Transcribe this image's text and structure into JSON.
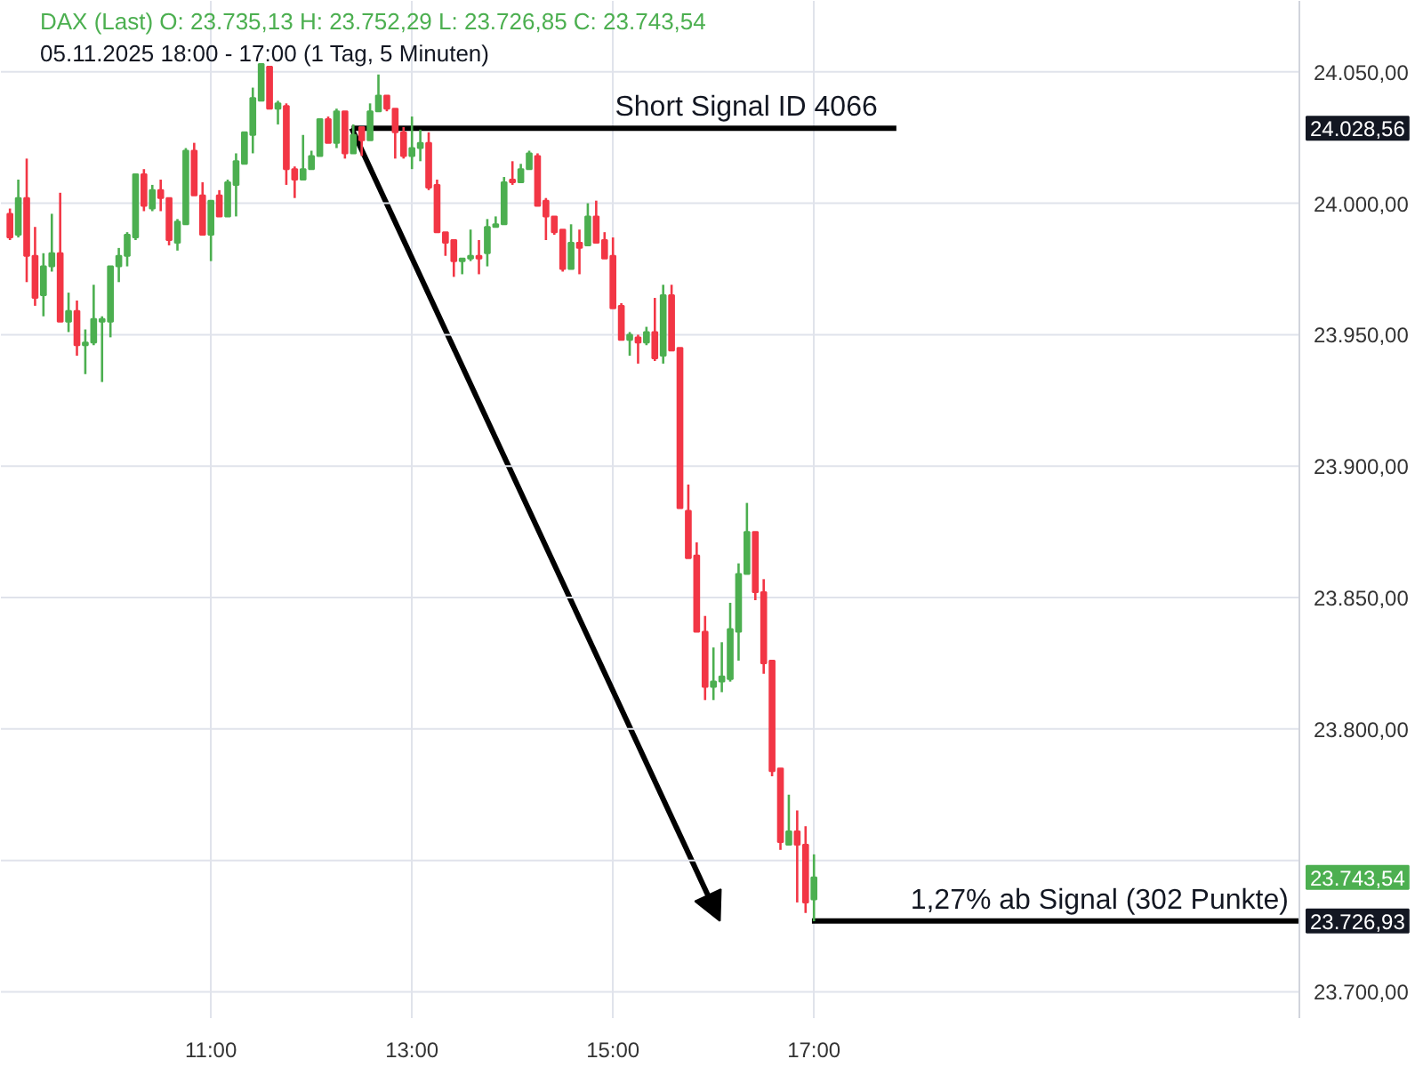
{
  "chart_data": {
    "type": "candlestick",
    "title": "DAX (Last) O: 23.735,13 H: 23.752,29 L: 23.726,85 C: 23.743,54",
    "subtitle": "05.11.2025 18:00 - 17:00 (1 Tag, 5 Minuten)",
    "x": [
      9.0,
      9.0833,
      9.1667,
      9.25,
      9.3333,
      9.4167,
      9.5,
      9.5833,
      9.6667,
      9.75,
      9.8333,
      9.9167,
      10.0,
      10.0833,
      10.1667,
      10.25,
      10.3333,
      10.4167,
      10.5,
      10.5833,
      10.6667,
      10.75,
      10.8333,
      10.9167,
      11.0,
      11.0833,
      11.1667,
      11.25,
      11.3333,
      11.4167,
      11.5,
      11.5833,
      11.6667,
      11.75,
      11.8333,
      11.9167,
      12.0,
      12.0833,
      12.1667,
      12.25,
      12.3333,
      12.4167,
      12.5,
      12.5833,
      12.6667,
      12.75,
      12.8333,
      12.9167,
      13.0,
      13.0833,
      13.1667,
      13.25,
      13.3333,
      13.4167,
      13.5,
      13.5833,
      13.6667,
      13.75,
      13.8333,
      13.9167,
      14.0,
      14.0833,
      14.1667,
      14.25,
      14.3333,
      14.4167,
      14.5,
      14.5833,
      14.6667,
      14.75,
      14.8333,
      14.9167,
      15.0,
      15.0833,
      15.1667,
      15.25,
      15.3333,
      15.4167,
      15.5,
      15.5833,
      15.6667,
      15.75,
      15.8333,
      15.9167,
      16.0,
      16.0833,
      16.1667,
      16.25,
      16.3333,
      16.4167,
      16.5,
      16.5833,
      16.6667,
      16.75,
      16.8333,
      16.9167,
      17.0
    ],
    "ohlc": [
      [
        23996,
        23998,
        23986,
        23987
      ],
      [
        23988,
        24009,
        23987,
        24002
      ],
      [
        24002,
        24017,
        23970,
        23980
      ],
      [
        23980,
        23991,
        23961,
        23964
      ],
      [
        23965,
        23981,
        23957,
        23976
      ],
      [
        23976,
        23996,
        23974,
        23981
      ],
      [
        23981,
        24004,
        23955,
        23955
      ],
      [
        23955,
        23966,
        23951,
        23959
      ],
      [
        23959,
        23963,
        23942,
        23946
      ],
      [
        23946,
        23952,
        23935,
        23947
      ],
      [
        23947,
        23969,
        23946,
        23956
      ],
      [
        23955,
        23957,
        23932,
        23956
      ],
      [
        23955,
        23976,
        23949,
        23976
      ],
      [
        23976,
        23983,
        23970,
        23980
      ],
      [
        23980,
        23989,
        23976,
        23988
      ],
      [
        23987,
        24011,
        23986,
        24011
      ],
      [
        24011,
        24013,
        23997,
        23999
      ],
      [
        23998,
        24007,
        23997,
        24005
      ],
      [
        24005,
        24009,
        23997,
        24002
      ],
      [
        24002,
        24002,
        23984,
        23986
      ],
      [
        23985,
        23994,
        23982,
        23993
      ],
      [
        23992,
        24021,
        23992,
        24020
      ],
      [
        24020,
        24023,
        24003,
        24003
      ],
      [
        24003,
        24008,
        23988,
        23988
      ],
      [
        23988,
        24001,
        23978,
        24001
      ],
      [
        24003,
        24005,
        23995,
        23995
      ],
      [
        23995,
        24009,
        23995,
        24008
      ],
      [
        24007,
        24019,
        23995,
        24016
      ],
      [
        24015,
        24027,
        24015,
        24027
      ],
      [
        24026,
        24044,
        24019,
        24040
      ],
      [
        24039,
        24053,
        24039,
        24053
      ],
      [
        24052,
        24052,
        24036,
        24036
      ],
      [
        24036,
        24039,
        24030,
        24038
      ],
      [
        24037,
        24038,
        24007,
        24013
      ],
      [
        24013,
        24014,
        24002,
        24009
      ],
      [
        24009,
        24026,
        24009,
        24013
      ],
      [
        24013,
        24020,
        24013,
        24018
      ],
      [
        24018,
        24032,
        24018,
        24032
      ],
      [
        24032,
        24033,
        24023,
        24023
      ],
      [
        24023,
        24036,
        24021,
        24035
      ],
      [
        24035,
        24035,
        24017,
        24019
      ],
      [
        24019,
        24030,
        24019,
        24026
      ],
      [
        24029,
        24029,
        24018,
        24024
      ],
      [
        24024,
        24038,
        24024,
        24035
      ],
      [
        24035,
        24049,
        24035,
        24041
      ],
      [
        24041,
        24041,
        24035,
        24036
      ],
      [
        24036,
        24036,
        24017,
        24027
      ],
      [
        24027,
        24029,
        24017,
        24018
      ],
      [
        24018,
        24033,
        24013,
        24021
      ],
      [
        24021,
        24028,
        24016,
        24023
      ],
      [
        24023,
        24027,
        24005,
        24006
      ],
      [
        24007,
        24009,
        23989,
        23989
      ],
      [
        23989,
        23989,
        23980,
        23985
      ],
      [
        23986,
        23986,
        23972,
        23978
      ],
      [
        23978,
        23979,
        23973,
        23979
      ],
      [
        23979,
        23990,
        23978,
        23980
      ],
      [
        23980,
        23986,
        23973,
        23979
      ],
      [
        23981,
        23994,
        23976,
        23991
      ],
      [
        23991,
        23995,
        23991,
        23992
      ],
      [
        23992,
        24010,
        23992,
        24008
      ],
      [
        24009,
        24016,
        24007,
        24008
      ],
      [
        24008,
        24015,
        24008,
        24013
      ],
      [
        24013,
        24020,
        24013,
        24019
      ],
      [
        24018,
        24019,
        23999,
        23999
      ],
      [
        24001,
        24002,
        23986,
        23995
      ],
      [
        23995,
        23995,
        23988,
        23989
      ],
      [
        23990,
        23990,
        23974,
        23975
      ],
      [
        23975,
        23992,
        23975,
        23985
      ],
      [
        23985,
        23990,
        23973,
        23983
      ],
      [
        23984,
        24000,
        23984,
        23995
      ],
      [
        23995,
        24001,
        23985,
        23985
      ],
      [
        23986,
        23989,
        23979,
        23979
      ],
      [
        23980,
        23987,
        23960,
        23960
      ],
      [
        23961,
        23962,
        23948,
        23948
      ],
      [
        23948,
        23951,
        23942,
        23950
      ],
      [
        23949,
        23950,
        23939,
        23947
      ],
      [
        23947,
        23953,
        23946,
        23951
      ],
      [
        23951,
        23964,
        23940,
        23941
      ],
      [
        23942,
        23969,
        23939,
        23965
      ],
      [
        23965,
        23969,
        23944,
        23944
      ],
      [
        23945,
        23945,
        23884,
        23884
      ],
      [
        23883,
        23893,
        23865,
        23865
      ],
      [
        23866,
        23871,
        23837,
        23837
      ],
      [
        23837,
        23843,
        23811,
        23816
      ],
      [
        23816,
        23831,
        23811,
        23818
      ],
      [
        23818,
        23833,
        23814,
        23820
      ],
      [
        23819,
        23848,
        23818,
        23838
      ],
      [
        23837,
        23863,
        23826,
        23859
      ],
      [
        23859,
        23886,
        23859,
        23875
      ],
      [
        23875,
        23875,
        23849,
        23852
      ],
      [
        23852,
        23857,
        23821,
        23825
      ],
      [
        23826,
        23826,
        23782,
        23784
      ],
      [
        23785,
        23785,
        23754,
        23757
      ],
      [
        23756,
        23775,
        23756,
        23761
      ],
      [
        23761,
        23769,
        23734,
        23756
      ],
      [
        23756,
        23763,
        23730,
        23734
      ],
      [
        23735.13,
        23752.29,
        23726.85,
        23743.54
      ]
    ],
    "colors": [
      "#f23645",
      "#4caf50",
      "#f23645",
      "#f23645",
      "#4caf50",
      "#4caf50",
      "#f23645",
      "#4caf50",
      "#f23645",
      "#4caf50",
      "#4caf50",
      "#4caf50",
      "#4caf50",
      "#4caf50",
      "#4caf50",
      "#4caf50",
      "#f23645",
      "#4caf50",
      "#f23645",
      "#f23645",
      "#4caf50",
      "#4caf50",
      "#f23645",
      "#f23645",
      "#4caf50",
      "#f23645",
      "#4caf50",
      "#4caf50",
      "#4caf50",
      "#4caf50",
      "#4caf50",
      "#f23645",
      "#4caf50",
      "#f23645",
      "#f23645",
      "#4caf50",
      "#4caf50",
      "#4caf50",
      "#f23645",
      "#4caf50",
      "#f23645",
      "#4caf50",
      "#f23645",
      "#4caf50",
      "#4caf50",
      "#f23645",
      "#f23645",
      "#f23645",
      "#4caf50",
      "#4caf50",
      "#f23645",
      "#f23645",
      "#f23645",
      "#f23645",
      "#4caf50",
      "#4caf50",
      "#f23645",
      "#4caf50",
      "#4caf50",
      "#4caf50",
      "#f23645",
      "#4caf50",
      "#4caf50",
      "#f23645",
      "#f23645",
      "#f23645",
      "#f23645",
      "#4caf50",
      "#f23645",
      "#4caf50",
      "#f23645",
      "#f23645",
      "#f23645",
      "#f23645",
      "#4caf50",
      "#f23645",
      "#4caf50",
      "#f23645",
      "#4caf50",
      "#f23645",
      "#f23645",
      "#f23645",
      "#f23645",
      "#f23645",
      "#4caf50",
      "#4caf50",
      "#4caf50",
      "#4caf50",
      "#4caf50",
      "#f23645",
      "#f23645",
      "#f23645",
      "#f23645",
      "#4caf50",
      "#f23645",
      "#f23645",
      "#4caf50"
    ],
    "series": [
      {
        "type": "line",
        "color": "#000000",
        "x": [
          12.4,
          17.82
        ],
        "values": [
          24028.56,
          24028.56
        ]
      },
      {
        "type": "line",
        "color": "#000000",
        "x": [
          16.98,
          21.83
        ],
        "values": [
          23726.93,
          23726.93
        ]
      }
    ],
    "annotations": [
      {
        "text": "Short Signal  ID 4066",
        "x": 15.02,
        "y": 24028.56
      },
      {
        "text": "1,27% ab Signal (302 Punkte)",
        "x": 17.96,
        "y": 23726.93
      },
      "24.028,56",
      "23.743,54",
      "23.726,93"
    ],
    "xlim": [
      8.91,
      21.83
    ],
    "ylim": [
      23690,
      24077
    ],
    "xticks": [
      {
        "value": 11,
        "label": "11:00"
      },
      {
        "value": 13,
        "label": "13:00"
      },
      {
        "value": 15,
        "label": "15:00"
      },
      {
        "value": 17,
        "label": "17:00"
      }
    ],
    "yticks": [
      {
        "value": 23700,
        "label": "23.700,00"
      },
      {
        "value": 23750,
        "label": null
      },
      {
        "value": 23800,
        "label": "23.800,00"
      },
      {
        "value": 23850,
        "label": "23.850,00"
      },
      {
        "value": 23900,
        "label": "23.900,00"
      },
      {
        "value": 23950,
        "label": "23.950,00"
      },
      {
        "value": 24000,
        "label": "24.000,00"
      },
      {
        "value": 24050,
        "label": "24.050,00"
      }
    ],
    "grid": true
  }
}
